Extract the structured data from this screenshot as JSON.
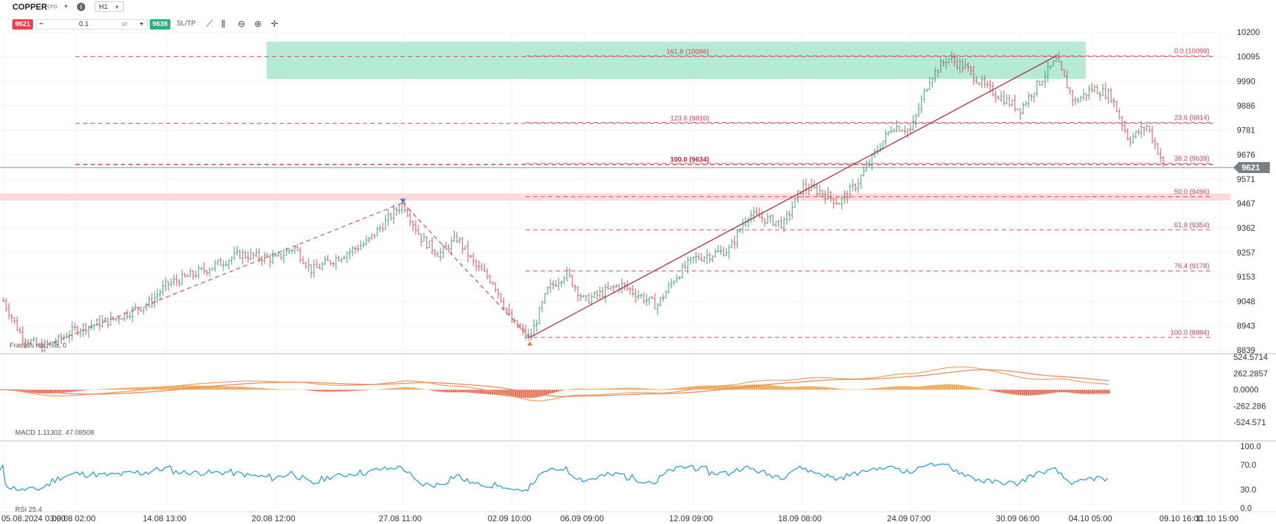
{
  "header": {
    "symbol": "COPPER",
    "symbol_type": "CFD",
    "timeframe": "H1",
    "sell_price": "9621",
    "buy_price": "9638",
    "quantity": "0.1",
    "sltp_label": "SL/TP"
  },
  "colors": {
    "up": "#2a9d6f",
    "down": "#d9434f",
    "fib": "#d9434f",
    "resistance_zone": "#a8e6cc",
    "support_zone": "#fbd3d3",
    "rsi": "#1f9bd7",
    "macd_line1": "#f0a060",
    "macd_line2": "#e8875a",
    "macd_hist_pos": "#f5a34a",
    "macd_hist_neg": "#ee6a4a"
  },
  "chart_data": [
    {
      "type": "candlestick",
      "symbol": "COPPER",
      "timeframe": "H1",
      "current_price": 9621,
      "y_ticks": [
        10200,
        10095,
        9990,
        9886,
        9781,
        9676,
        9571,
        9467,
        9362,
        9257,
        9153,
        9048,
        8943,
        8839
      ],
      "ylim": [
        8839,
        10200
      ],
      "x_tick_labels": [
        "05.08.2024 03:00",
        "09.08 02:00",
        "14.08 13:00",
        "20.08 12:00",
        "27.08 11:00",
        "02.09 10:00",
        "06.09 09:00",
        "12.09 09:00",
        "18.09 08:00",
        "24.09 07:00",
        "30.09 06:00",
        "04.10 05:00",
        "09.10 16:00",
        "11.10 15:00"
      ],
      "price_path": [
        [
          "05.08",
          9050
        ],
        [
          "06.08",
          8900
        ],
        [
          "07.08",
          8850
        ],
        [
          "08.08",
          8880
        ],
        [
          "09.08",
          8930
        ],
        [
          "11.08",
          8970
        ],
        [
          "13.08",
          9040
        ],
        [
          "14.08",
          9120
        ],
        [
          "16.08",
          9180
        ],
        [
          "18.08",
          9250
        ],
        [
          "20.08",
          9230
        ],
        [
          "21.08",
          9280
        ],
        [
          "22.08",
          9180
        ],
        [
          "23.08",
          9220
        ],
        [
          "25.08",
          9300
        ],
        [
          "27.08",
          9470
        ],
        [
          "28.08",
          9320
        ],
        [
          "29.08",
          9250
        ],
        [
          "30.08",
          9320
        ],
        [
          "31.08",
          9200
        ],
        [
          "01.09",
          9130
        ],
        [
          "02.09",
          8960
        ],
        [
          "03.09",
          8890
        ],
        [
          "04.09",
          9100
        ],
        [
          "05.09",
          9170
        ],
        [
          "06.09",
          9050
        ],
        [
          "08.09",
          9120
        ],
        [
          "10.09",
          9030
        ],
        [
          "11.09",
          9150
        ],
        [
          "12.09",
          9230
        ],
        [
          "14.09",
          9270
        ],
        [
          "15.09",
          9420
        ],
        [
          "17.09",
          9380
        ],
        [
          "18.09",
          9540
        ],
        [
          "19.09",
          9520
        ],
        [
          "20.09",
          9470
        ],
        [
          "21.09",
          9550
        ],
        [
          "22.09",
          9680
        ],
        [
          "23.09",
          9800
        ],
        [
          "24.09",
          9780
        ],
        [
          "25.09",
          10000
        ],
        [
          "26.09",
          10090
        ],
        [
          "27.09",
          10050
        ],
        [
          "28.09",
          9970
        ],
        [
          "30.09",
          9870
        ],
        [
          "01.10",
          9980
        ],
        [
          "02.10",
          10080
        ],
        [
          "03.10",
          9900
        ],
        [
          "04.10",
          9960
        ],
        [
          "05.10",
          9930
        ],
        [
          "06.10",
          9740
        ],
        [
          "07.10",
          9800
        ],
        [
          "08.10",
          9621
        ]
      ],
      "fibonacci_retracement": [
        {
          "label": "0.0 (10099)",
          "value": 10099
        },
        {
          "label": "23.6 (9814)",
          "value": 9814
        },
        {
          "label": "38.2 (9639)",
          "value": 9639
        },
        {
          "label": "50.0 (9496)",
          "value": 9496
        },
        {
          "label": "61.8 (9354)",
          "value": 9354
        },
        {
          "label": "76.4 (9178)",
          "value": 9178
        },
        {
          "label": "100.0 (8894)",
          "value": 8894
        }
      ],
      "fibonacci_extension": [
        {
          "label": "161.8 (10096)",
          "value": 10096
        },
        {
          "label": "123.6 (9810)",
          "value": 9810
        },
        {
          "label": "100.0 (9634)",
          "value": 9634
        }
      ],
      "zones": [
        {
          "name": "resistance",
          "from": 10000,
          "to": 10160
        },
        {
          "name": "support",
          "from": 9480,
          "to": 9510
        }
      ],
      "indicator_label": "Fractals n/a, n/a, 0"
    },
    {
      "type": "line",
      "indicator": "MACD",
      "label": "MACD 1.11302, 47.08508",
      "y_ticks": [
        "524.5714",
        "262.2857",
        "0.0000",
        "-262.286",
        "-524.571"
      ],
      "ylim": [
        -524.571,
        524.5714
      ]
    },
    {
      "type": "line",
      "indicator": "RSI",
      "label": "RSI 25.4",
      "y_ticks": [
        "100.0",
        "70.0",
        "30.0",
        "0.0"
      ],
      "ylim": [
        0,
        100
      ],
      "last_value": 25.4
    }
  ]
}
